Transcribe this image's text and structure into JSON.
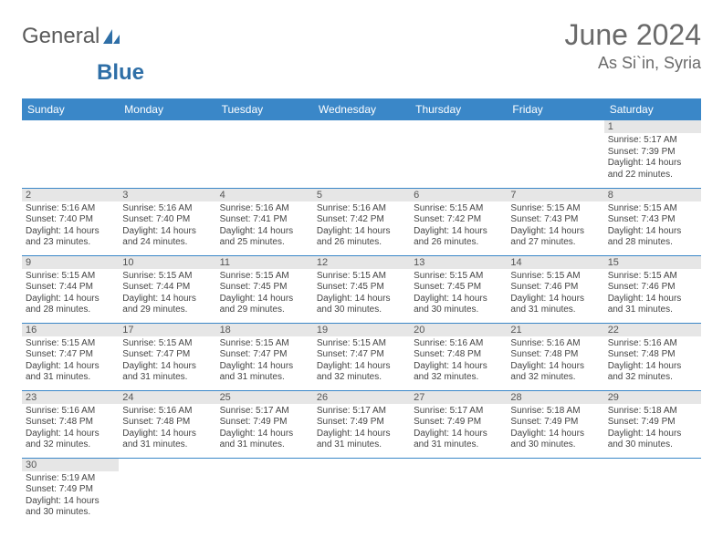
{
  "brand": {
    "name_a": "General",
    "name_b": "Blue"
  },
  "title": {
    "month": "June 2024",
    "location": "As Si`in, Syria"
  },
  "colors": {
    "header_bg": "#3a87c8",
    "header_text": "#ffffff",
    "daynum_bg": "#e6e6e6",
    "rule": "#3a87c8",
    "text": "#444444",
    "title_color": "#6a6a6a"
  },
  "weekdays": [
    "Sunday",
    "Monday",
    "Tuesday",
    "Wednesday",
    "Thursday",
    "Friday",
    "Saturday"
  ],
  "weeks": [
    [
      {
        "empty": true
      },
      {
        "empty": true
      },
      {
        "empty": true
      },
      {
        "empty": true
      },
      {
        "empty": true
      },
      {
        "empty": true
      },
      {
        "daynum": "1",
        "sunrise": "Sunrise: 5:17 AM",
        "sunset": "Sunset: 7:39 PM",
        "dl1": "Daylight: 14 hours",
        "dl2": "and 22 minutes."
      }
    ],
    [
      {
        "daynum": "2",
        "sunrise": "Sunrise: 5:16 AM",
        "sunset": "Sunset: 7:40 PM",
        "dl1": "Daylight: 14 hours",
        "dl2": "and 23 minutes."
      },
      {
        "daynum": "3",
        "sunrise": "Sunrise: 5:16 AM",
        "sunset": "Sunset: 7:40 PM",
        "dl1": "Daylight: 14 hours",
        "dl2": "and 24 minutes."
      },
      {
        "daynum": "4",
        "sunrise": "Sunrise: 5:16 AM",
        "sunset": "Sunset: 7:41 PM",
        "dl1": "Daylight: 14 hours",
        "dl2": "and 25 minutes."
      },
      {
        "daynum": "5",
        "sunrise": "Sunrise: 5:16 AM",
        "sunset": "Sunset: 7:42 PM",
        "dl1": "Daylight: 14 hours",
        "dl2": "and 26 minutes."
      },
      {
        "daynum": "6",
        "sunrise": "Sunrise: 5:15 AM",
        "sunset": "Sunset: 7:42 PM",
        "dl1": "Daylight: 14 hours",
        "dl2": "and 26 minutes."
      },
      {
        "daynum": "7",
        "sunrise": "Sunrise: 5:15 AM",
        "sunset": "Sunset: 7:43 PM",
        "dl1": "Daylight: 14 hours",
        "dl2": "and 27 minutes."
      },
      {
        "daynum": "8",
        "sunrise": "Sunrise: 5:15 AM",
        "sunset": "Sunset: 7:43 PM",
        "dl1": "Daylight: 14 hours",
        "dl2": "and 28 minutes."
      }
    ],
    [
      {
        "daynum": "9",
        "sunrise": "Sunrise: 5:15 AM",
        "sunset": "Sunset: 7:44 PM",
        "dl1": "Daylight: 14 hours",
        "dl2": "and 28 minutes."
      },
      {
        "daynum": "10",
        "sunrise": "Sunrise: 5:15 AM",
        "sunset": "Sunset: 7:44 PM",
        "dl1": "Daylight: 14 hours",
        "dl2": "and 29 minutes."
      },
      {
        "daynum": "11",
        "sunrise": "Sunrise: 5:15 AM",
        "sunset": "Sunset: 7:45 PM",
        "dl1": "Daylight: 14 hours",
        "dl2": "and 29 minutes."
      },
      {
        "daynum": "12",
        "sunrise": "Sunrise: 5:15 AM",
        "sunset": "Sunset: 7:45 PM",
        "dl1": "Daylight: 14 hours",
        "dl2": "and 30 minutes."
      },
      {
        "daynum": "13",
        "sunrise": "Sunrise: 5:15 AM",
        "sunset": "Sunset: 7:45 PM",
        "dl1": "Daylight: 14 hours",
        "dl2": "and 30 minutes."
      },
      {
        "daynum": "14",
        "sunrise": "Sunrise: 5:15 AM",
        "sunset": "Sunset: 7:46 PM",
        "dl1": "Daylight: 14 hours",
        "dl2": "and 31 minutes."
      },
      {
        "daynum": "15",
        "sunrise": "Sunrise: 5:15 AM",
        "sunset": "Sunset: 7:46 PM",
        "dl1": "Daylight: 14 hours",
        "dl2": "and 31 minutes."
      }
    ],
    [
      {
        "daynum": "16",
        "sunrise": "Sunrise: 5:15 AM",
        "sunset": "Sunset: 7:47 PM",
        "dl1": "Daylight: 14 hours",
        "dl2": "and 31 minutes."
      },
      {
        "daynum": "17",
        "sunrise": "Sunrise: 5:15 AM",
        "sunset": "Sunset: 7:47 PM",
        "dl1": "Daylight: 14 hours",
        "dl2": "and 31 minutes."
      },
      {
        "daynum": "18",
        "sunrise": "Sunrise: 5:15 AM",
        "sunset": "Sunset: 7:47 PM",
        "dl1": "Daylight: 14 hours",
        "dl2": "and 31 minutes."
      },
      {
        "daynum": "19",
        "sunrise": "Sunrise: 5:15 AM",
        "sunset": "Sunset: 7:47 PM",
        "dl1": "Daylight: 14 hours",
        "dl2": "and 32 minutes."
      },
      {
        "daynum": "20",
        "sunrise": "Sunrise: 5:16 AM",
        "sunset": "Sunset: 7:48 PM",
        "dl1": "Daylight: 14 hours",
        "dl2": "and 32 minutes."
      },
      {
        "daynum": "21",
        "sunrise": "Sunrise: 5:16 AM",
        "sunset": "Sunset: 7:48 PM",
        "dl1": "Daylight: 14 hours",
        "dl2": "and 32 minutes."
      },
      {
        "daynum": "22",
        "sunrise": "Sunrise: 5:16 AM",
        "sunset": "Sunset: 7:48 PM",
        "dl1": "Daylight: 14 hours",
        "dl2": "and 32 minutes."
      }
    ],
    [
      {
        "daynum": "23",
        "sunrise": "Sunrise: 5:16 AM",
        "sunset": "Sunset: 7:48 PM",
        "dl1": "Daylight: 14 hours",
        "dl2": "and 32 minutes."
      },
      {
        "daynum": "24",
        "sunrise": "Sunrise: 5:16 AM",
        "sunset": "Sunset: 7:48 PM",
        "dl1": "Daylight: 14 hours",
        "dl2": "and 31 minutes."
      },
      {
        "daynum": "25",
        "sunrise": "Sunrise: 5:17 AM",
        "sunset": "Sunset: 7:49 PM",
        "dl1": "Daylight: 14 hours",
        "dl2": "and 31 minutes."
      },
      {
        "daynum": "26",
        "sunrise": "Sunrise: 5:17 AM",
        "sunset": "Sunset: 7:49 PM",
        "dl1": "Daylight: 14 hours",
        "dl2": "and 31 minutes."
      },
      {
        "daynum": "27",
        "sunrise": "Sunrise: 5:17 AM",
        "sunset": "Sunset: 7:49 PM",
        "dl1": "Daylight: 14 hours",
        "dl2": "and 31 minutes."
      },
      {
        "daynum": "28",
        "sunrise": "Sunrise: 5:18 AM",
        "sunset": "Sunset: 7:49 PM",
        "dl1": "Daylight: 14 hours",
        "dl2": "and 30 minutes."
      },
      {
        "daynum": "29",
        "sunrise": "Sunrise: 5:18 AM",
        "sunset": "Sunset: 7:49 PM",
        "dl1": "Daylight: 14 hours",
        "dl2": "and 30 minutes."
      }
    ],
    [
      {
        "daynum": "30",
        "sunrise": "Sunrise: 5:19 AM",
        "sunset": "Sunset: 7:49 PM",
        "dl1": "Daylight: 14 hours",
        "dl2": "and 30 minutes."
      },
      {
        "empty": true
      },
      {
        "empty": true
      },
      {
        "empty": true
      },
      {
        "empty": true
      },
      {
        "empty": true
      },
      {
        "empty": true
      }
    ]
  ]
}
